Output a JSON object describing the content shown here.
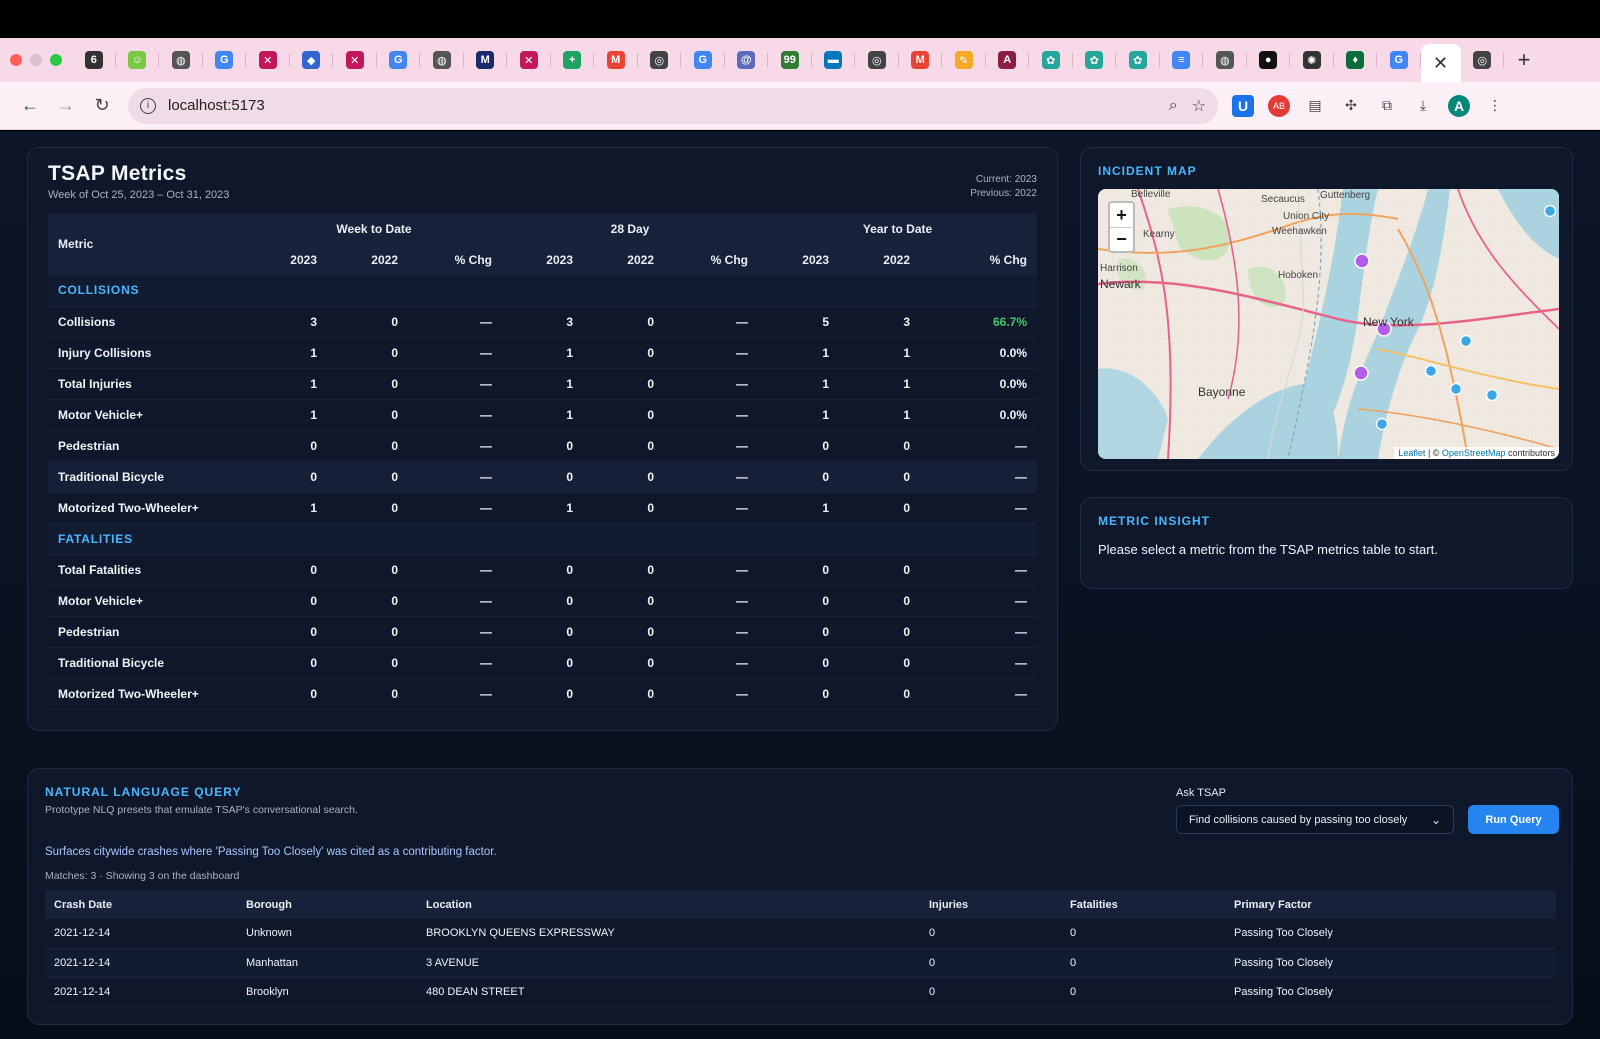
{
  "browser": {
    "url": "localhost:5173",
    "tabs": [
      {
        "icon": "flame-icon",
        "color": "#333333",
        "glyph": "6"
      },
      {
        "icon": "smiley-icon",
        "color": "#7ac943",
        "glyph": "☺"
      },
      {
        "icon": "globe-icon",
        "color": "#555555",
        "glyph": "◍"
      },
      {
        "icon": "google-icon",
        "color": "#4285f4",
        "glyph": "G"
      },
      {
        "icon": "x-tool-icon",
        "color": "#c2185b",
        "glyph": "✕"
      },
      {
        "icon": "diamond-icon",
        "color": "#3366cc",
        "glyph": "◆"
      },
      {
        "icon": "x-tool-icon",
        "color": "#c2185b",
        "glyph": "✕"
      },
      {
        "icon": "google-icon",
        "color": "#4285f4",
        "glyph": "G"
      },
      {
        "icon": "globe-icon",
        "color": "#555555",
        "glyph": "◍"
      },
      {
        "icon": "mlb-icon",
        "color": "#1a2a6c",
        "glyph": "M"
      },
      {
        "icon": "x-tool-icon",
        "color": "#c2185b",
        "glyph": "✕"
      },
      {
        "icon": "sheets-icon",
        "color": "#1ea362",
        "glyph": "+"
      },
      {
        "icon": "gmail-icon",
        "color": "#ea4335",
        "glyph": "M"
      },
      {
        "icon": "chrome-icon",
        "color": "#444444",
        "glyph": "◎"
      },
      {
        "icon": "google-icon",
        "color": "#4285f4",
        "glyph": "G"
      },
      {
        "icon": "at-icon",
        "color": "#5c6bc0",
        "glyph": "@"
      },
      {
        "icon": "badge-99-icon",
        "color": "#2e7d32",
        "glyph": "99"
      },
      {
        "icon": "tv-icon",
        "color": "#0277bd",
        "glyph": "▬"
      },
      {
        "icon": "chrome-icon",
        "color": "#444444",
        "glyph": "◎"
      },
      {
        "icon": "gmail-icon",
        "color": "#ea4335",
        "glyph": "M"
      },
      {
        "icon": "pencil-icon",
        "color": "#f9a825",
        "glyph": "✎"
      },
      {
        "icon": "asu-icon",
        "color": "#8c1d40",
        "glyph": "A"
      },
      {
        "icon": "pinwheel-icon",
        "color": "#26a69a",
        "glyph": "✿"
      },
      {
        "icon": "pinwheel-icon",
        "color": "#26a69a",
        "glyph": "✿"
      },
      {
        "icon": "pinwheel-icon",
        "color": "#26a69a",
        "glyph": "✿"
      },
      {
        "icon": "docs-icon",
        "color": "#4285f4",
        "glyph": "≡"
      },
      {
        "icon": "globe-icon",
        "color": "#555555",
        "glyph": "◍"
      },
      {
        "icon": "github-icon",
        "color": "#111111",
        "glyph": "●"
      },
      {
        "icon": "openai-icon",
        "color": "#333333",
        "glyph": "✺"
      },
      {
        "icon": "mongodb-icon",
        "color": "#0b6e3a",
        "glyph": "♦"
      },
      {
        "icon": "google-icon",
        "color": "#4285f4",
        "glyph": "G"
      }
    ],
    "active_tab_glyph": "✕",
    "tab_after": {
      "icon": "chrome-icon",
      "color": "#444444",
      "glyph": "◎"
    },
    "new_tab_glyph": "+",
    "avatar_letter": "A"
  },
  "metrics": {
    "title": "TSAP Metrics",
    "subtitle": "Week of Oct 25, 2023 – Oct 31, 2023",
    "current": "Current: 2023",
    "previous": "Previous: 2022",
    "header": {
      "metric": "Metric",
      "groups": [
        "Week to Date",
        "28 Day",
        "Year to Date"
      ],
      "cols": [
        "2023",
        "2022",
        "% Chg",
        "2023",
        "2022",
        "% Chg",
        "2023",
        "2022",
        "% Chg"
      ]
    },
    "sections": [
      {
        "name": "COLLISIONS",
        "rows": [
          {
            "label": "Collisions",
            "vals": [
              "3",
              "0",
              "—",
              "3",
              "0",
              "—",
              "5",
              "3",
              "66.7%"
            ],
            "pos": true
          },
          {
            "label": "Injury Collisions",
            "vals": [
              "1",
              "0",
              "—",
              "1",
              "0",
              "—",
              "1",
              "1",
              "0.0%"
            ]
          },
          {
            "label": "Total Injuries",
            "vals": [
              "1",
              "0",
              "—",
              "1",
              "0",
              "—",
              "1",
              "1",
              "0.0%"
            ]
          },
          {
            "label": "Motor Vehicle+",
            "vals": [
              "1",
              "0",
              "—",
              "1",
              "0",
              "—",
              "1",
              "1",
              "0.0%"
            ]
          },
          {
            "label": "Pedestrian",
            "vals": [
              "0",
              "0",
              "—",
              "0",
              "0",
              "—",
              "0",
              "0",
              "—"
            ]
          },
          {
            "label": "Traditional Bicycle",
            "vals": [
              "0",
              "0",
              "—",
              "0",
              "0",
              "—",
              "0",
              "0",
              "—"
            ],
            "highlight": true
          },
          {
            "label": "Motorized Two-Wheeler+",
            "vals": [
              "1",
              "0",
              "—",
              "1",
              "0",
              "—",
              "1",
              "0",
              "—"
            ]
          }
        ]
      },
      {
        "name": "FATALITIES",
        "rows": [
          {
            "label": "Total Fatalities",
            "vals": [
              "0",
              "0",
              "—",
              "0",
              "0",
              "—",
              "0",
              "0",
              "—"
            ]
          },
          {
            "label": "Motor Vehicle+",
            "vals": [
              "0",
              "0",
              "—",
              "0",
              "0",
              "—",
              "0",
              "0",
              "—"
            ]
          },
          {
            "label": "Pedestrian",
            "vals": [
              "0",
              "0",
              "—",
              "0",
              "0",
              "—",
              "0",
              "0",
              "—"
            ]
          },
          {
            "label": "Traditional Bicycle",
            "vals": [
              "0",
              "0",
              "—",
              "0",
              "0",
              "—",
              "0",
              "0",
              "—"
            ]
          },
          {
            "label": "Motorized Two-Wheeler+",
            "vals": [
              "0",
              "0",
              "—",
              "0",
              "0",
              "—",
              "0",
              "0",
              "—"
            ]
          }
        ]
      }
    ]
  },
  "incident_map": {
    "title": "INCIDENT MAP",
    "zoom_in": "+",
    "zoom_out": "−",
    "attribution_leaflet": "Leaflet",
    "attribution_sep": " | © ",
    "attribution_osm": "OpenStreetMap",
    "attribution_tail": " contributors",
    "places": [
      "Belleville",
      "Secaucus",
      "Guttenberg",
      "Kearny",
      "Union City",
      "Weehawken",
      "Harrison",
      "Hoboken",
      "Newark",
      "New York",
      "Bayonne"
    ]
  },
  "insight": {
    "title": "METRIC INSIGHT",
    "message": "Please select a metric from the TSAP metrics table to start."
  },
  "nlq": {
    "title": "NATURAL LANGUAGE QUERY",
    "subtitle": "Prototype NLQ presets that emulate TSAP's conversational search.",
    "ask_label": "Ask TSAP",
    "selected": "Find collisions caused by passing too closely",
    "run_label": "Run Query",
    "description": "Surfaces citywide crashes where 'Passing Too Closely' was cited as a contributing factor.",
    "matches": "Matches: 3 · Showing 3 on the dashboard",
    "columns": [
      "Crash Date",
      "Borough",
      "Location",
      "Injuries",
      "Fatalities",
      "Primary Factor"
    ],
    "rows": [
      [
        "2021-12-14",
        "Unknown",
        "BROOKLYN QUEENS EXPRESSWAY",
        "0",
        "0",
        "Passing Too Closely"
      ],
      [
        "2021-12-14",
        "Manhattan",
        "3 AVENUE",
        "0",
        "0",
        "Passing Too Closely"
      ],
      [
        "2021-12-14",
        "Brooklyn",
        "480 DEAN STREET",
        "0",
        "0",
        "Passing Too Closely"
      ]
    ]
  }
}
